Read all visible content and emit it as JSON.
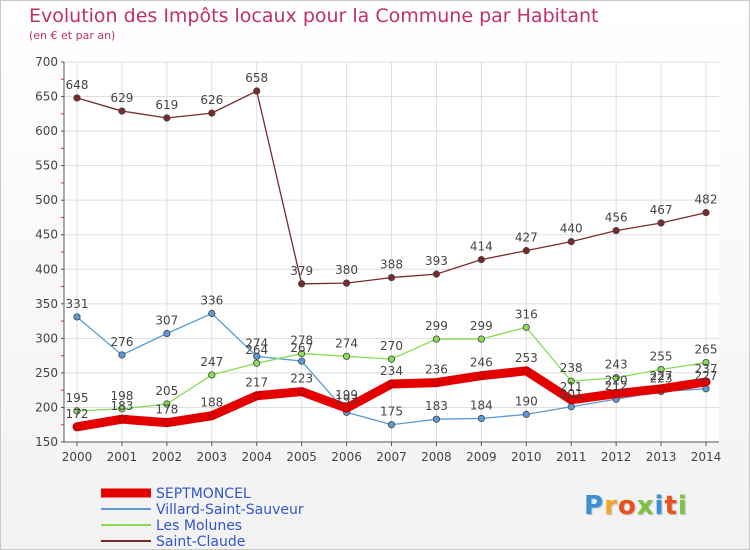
{
  "title": "Evolution des Impôts locaux pour la Commune par Habitant",
  "subtitle": "(en € et par an)",
  "logo_text": "Proxiti",
  "chart_data": {
    "type": "line",
    "title": "Evolution des Impôts locaux pour la Commune par Habitant",
    "subtitle": "(en € et par an)",
    "xlabel": "",
    "ylabel": "",
    "x": [
      "2000",
      "2001",
      "2002",
      "2003",
      "2004",
      "2005",
      "2006",
      "2007",
      "2008",
      "2009",
      "2010",
      "2011",
      "2012",
      "2013",
      "2014"
    ],
    "ylim": [
      150,
      700
    ],
    "yticks": [
      150,
      200,
      250,
      300,
      350,
      400,
      450,
      500,
      550,
      600,
      650,
      700
    ],
    "grid": true,
    "legend_position": "bottom-left",
    "series": [
      {
        "name": "SEPTMONCEL",
        "color": "#e50000",
        "emphasis": true,
        "values": [
          172,
          183,
          178,
          188,
          217,
          223,
          199,
          234,
          236,
          246,
          253,
          211,
          220,
          227,
          237
        ]
      },
      {
        "name": "Villard-Saint-Sauveur",
        "color": "#5a9bd5",
        "emphasis": false,
        "values": [
          331,
          276,
          307,
          336,
          274,
          267,
          193,
          175,
          183,
          184,
          190,
          201,
          212,
          223,
          227
        ]
      },
      {
        "name": "Les Molunes",
        "color": "#88dd55",
        "emphasis": false,
        "values": [
          195,
          198,
          205,
          247,
          264,
          278,
          274,
          270,
          299,
          299,
          316,
          238,
          243,
          255,
          265
        ]
      },
      {
        "name": "Saint-Claude",
        "color": "#7a2a2a",
        "emphasis": false,
        "values": [
          648,
          629,
          619,
          626,
          658,
          379,
          380,
          388,
          393,
          414,
          427,
          440,
          456,
          467,
          482
        ]
      }
    ]
  },
  "colors": {
    "title": "#c0306a",
    "legend_text": "#3355cc",
    "grid": "#dddddd",
    "axis": "#555555",
    "label": "#444444"
  }
}
